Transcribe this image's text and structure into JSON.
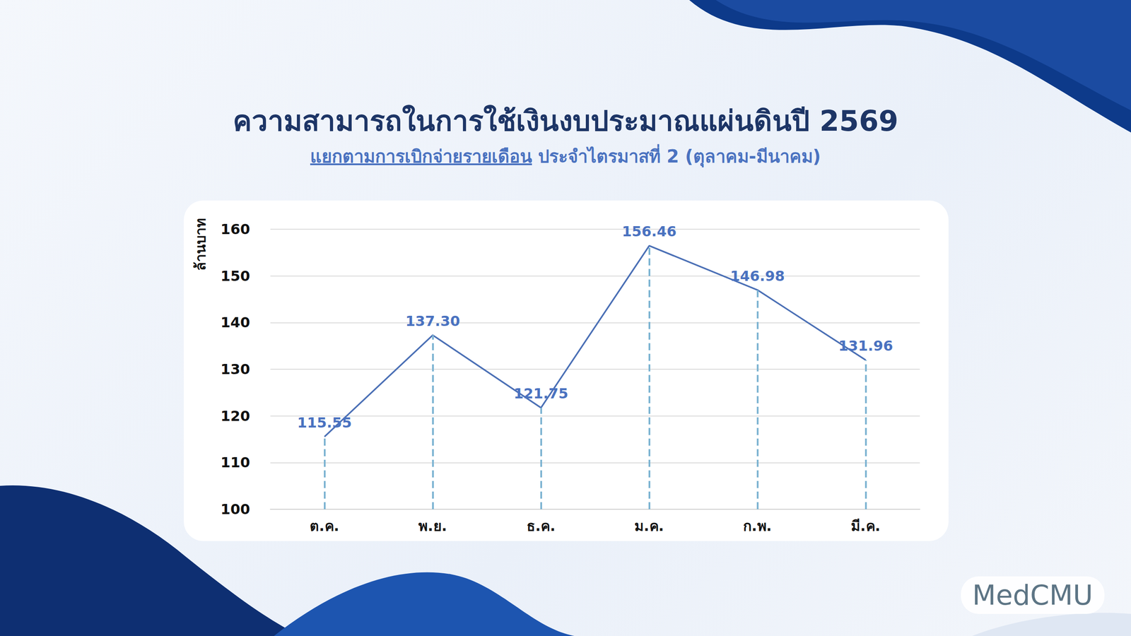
{
  "chart_data": {
    "type": "line",
    "title": "ความสามารถในการใช้เงินงบประมาณแผ่นดินปี 2569",
    "subtitle": "แยกตามการเบิกจ่ายรายเดือน ประจำไตรมาสที่ 2 (ตุลาคม-มีนาคม)",
    "y_label": "ล้านบาท",
    "brand": "MedCMU",
    "categories": [
      "ต.ค.",
      "พ.ย.",
      "ธ.ค.",
      "ม.ค.",
      "ก.พ.",
      "มี.ค."
    ],
    "values": [
      115.55,
      137.3,
      121.75,
      156.46,
      146.98,
      131.96
    ],
    "value_labels": [
      "115.55",
      "137.30",
      "121.75",
      "156.46",
      "146.98",
      "131.96"
    ],
    "color": "#4a6fb5",
    "ylim": [
      100,
      160
    ],
    "yticks": [
      100,
      110,
      120,
      130,
      140,
      150,
      160
    ],
    "grid": true,
    "data_labels": true
  }
}
